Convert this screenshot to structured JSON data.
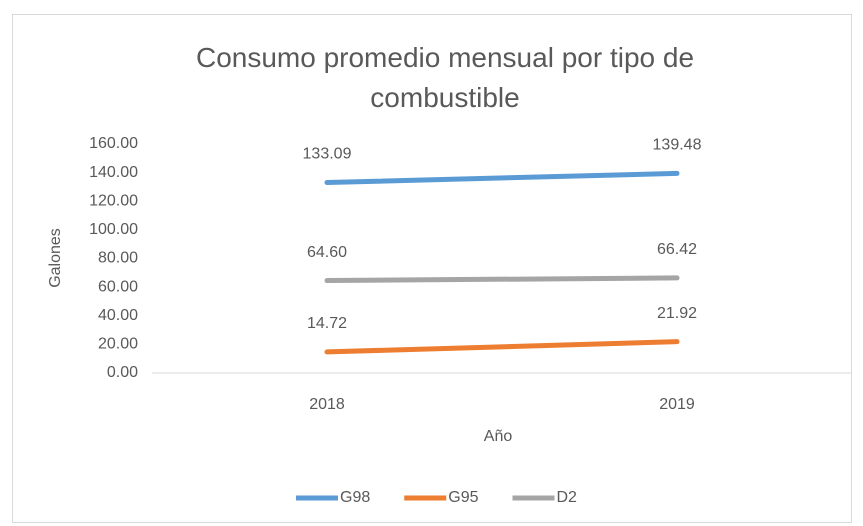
{
  "chart_data": {
    "type": "line",
    "title": "Consumo promedio mensual por tipo de combustible",
    "xlabel": "Año",
    "ylabel": "Galones",
    "categories": [
      "2018",
      "2019"
    ],
    "series": [
      {
        "name": "G98",
        "color": "#5b9bd5",
        "values": [
          133.09,
          139.48
        ],
        "value_labels": [
          "133.09",
          "139.48"
        ]
      },
      {
        "name": "G95",
        "color": "#ed7d31",
        "values": [
          14.72,
          21.92
        ],
        "value_labels": [
          "14.72",
          "21.92"
        ]
      },
      {
        "name": "D2",
        "color": "#a5a5a5",
        "values": [
          64.6,
          66.42
        ],
        "value_labels": [
          "64.60",
          "66.42"
        ]
      }
    ],
    "ylim": [
      0,
      160
    ],
    "yticks": [
      {
        "value": 0,
        "label": "0.00"
      },
      {
        "value": 20,
        "label": "20.00"
      },
      {
        "value": 40,
        "label": "40.00"
      },
      {
        "value": 60,
        "label": "60.00"
      },
      {
        "value": 80,
        "label": "80.00"
      },
      {
        "value": 100,
        "label": "100.00"
      },
      {
        "value": 120,
        "label": "120.00"
      },
      {
        "value": 140,
        "label": "140.00"
      },
      {
        "value": 160,
        "label": "160.00"
      }
    ],
    "grid": false,
    "legend": "bottom"
  }
}
